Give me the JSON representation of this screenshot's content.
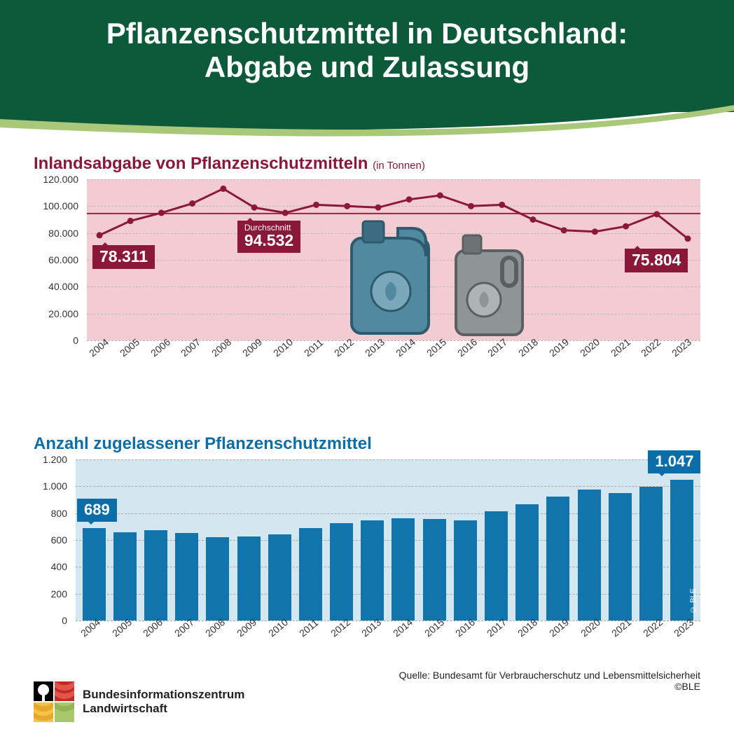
{
  "header": {
    "title_line1": "Pflanzenschutzmittel in Deutschland:",
    "title_line2": "Abgabe und Zulassung",
    "bg_color": "#0d5a3a",
    "text_color": "#ffffff",
    "swoosh_light": "#a9c879",
    "swoosh_dark": "#0d5a3a"
  },
  "years": [
    "2004",
    "2005",
    "2006",
    "2007",
    "2008",
    "2009",
    "2010",
    "2011",
    "2012",
    "2013",
    "2014",
    "2015",
    "2016",
    "2017",
    "2018",
    "2019",
    "2020",
    "2021",
    "2022",
    "2023"
  ],
  "chart1": {
    "title": "Inlandsabgabe von Pflanzenschutzmitteln",
    "unit": "(in Tonnen)",
    "type": "line",
    "title_color": "#8b1838",
    "bg_color": "#f3cbd3",
    "grid_color": "#c0c0c0",
    "line_color": "#8b1838",
    "avg_line_color": "#a81d3e",
    "marker_color": "#8b1838",
    "ylim": [
      0,
      120000
    ],
    "ytick_step": 20000,
    "yticks": [
      "0",
      "20.000",
      "40.000",
      "60.000",
      "80.000",
      "100.000",
      "120.000"
    ],
    "values": [
      78311,
      89000,
      95000,
      102000,
      113000,
      99000,
      95000,
      101000,
      100000,
      99000,
      105000,
      108000,
      100000,
      101000,
      90000,
      82000,
      81000,
      85000,
      94000,
      75804
    ],
    "average": 94532,
    "callout_first": "78.311",
    "callout_last": "75.804",
    "callout_avg_label": "Durchschnitt",
    "callout_avg_value": "94.532",
    "canister1_color": "#5189a0",
    "canister2_color": "#8f9597"
  },
  "chart2": {
    "title": "Anzahl zugelassener Pflanzenschutzmittel",
    "type": "bar",
    "title_color": "#0b6ea8",
    "bg_color": "#d4e6ef",
    "grid_color": "#b0b0b0",
    "bar_color": "#1175ac",
    "ylim": [
      0,
      1200
    ],
    "ytick_step": 200,
    "yticks": [
      "0",
      "200",
      "400",
      "600",
      "800",
      "1.000",
      "1.200"
    ],
    "values": [
      689,
      660,
      675,
      650,
      620,
      625,
      640,
      690,
      725,
      745,
      760,
      758,
      745,
      815,
      865,
      925,
      975,
      950,
      995,
      1047
    ],
    "callout_first": "689",
    "callout_last": "1.047",
    "copyright_vertical": "© BLE"
  },
  "footer": {
    "org_line1": "Bundesinformationszentrum",
    "org_line2": "Landwirtschaft",
    "source": "Quelle: Bundesamt für Verbraucherschutz und Lebensmittelsicherheit",
    "copyright": "©BLE",
    "logo_colors": {
      "tl_bg": "#000000",
      "tl_tree": "#ffffff",
      "tr": "#c62828",
      "bl": "#f6c445",
      "br": "#a8c86a"
    }
  }
}
